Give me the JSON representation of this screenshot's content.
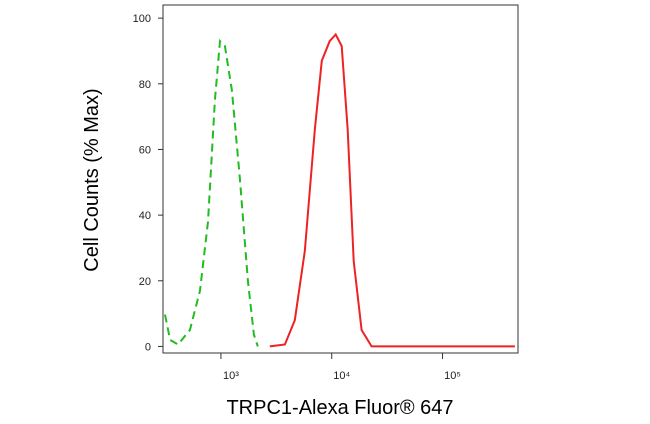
{
  "chart_data": {
    "type": "line",
    "x_label": "TRPC1-Alexa Fluor® 647",
    "y_label": "Cell Counts (% Max)",
    "x_log": true,
    "xlim": [
      300,
      480000
    ],
    "ylim": [
      -2,
      104
    ],
    "xticks": [
      {
        "value": 1000,
        "label": "10³"
      },
      {
        "value": 10000,
        "label": "10⁴"
      },
      {
        "value": 100000,
        "label": "10⁵"
      }
    ],
    "yticks": [
      0,
      20,
      40,
      60,
      80,
      100
    ],
    "series": [
      {
        "color": "#22bb22",
        "dashed": true,
        "x": [
          313,
          348,
          410,
          525,
          647,
          764,
          883,
          980,
          1087,
          1256,
          1483,
          1750,
          1983,
          2153
        ],
        "values": [
          9.7,
          2,
          0.6,
          5,
          17,
          38,
          75,
          93,
          91.5,
          78,
          51,
          20,
          3.6,
          0
        ]
      },
      {
        "color": "#ee2222",
        "dashed": false,
        "x": [
          2760,
          3776,
          4645,
          5715,
          7031,
          8130,
          9593,
          10870,
          12310,
          13940,
          15790,
          18620,
          22900,
          36900,
          450000
        ],
        "values": [
          0,
          0.6,
          8,
          29,
          66,
          87,
          93,
          95,
          91.5,
          66,
          26,
          5,
          0,
          0,
          0
        ]
      }
    ]
  }
}
